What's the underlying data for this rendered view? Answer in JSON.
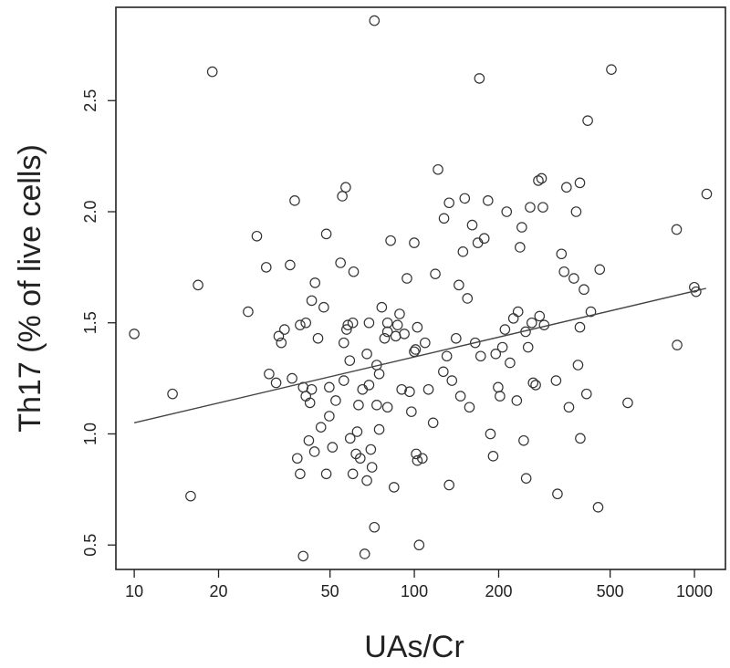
{
  "chart_data": {
    "type": "scatter",
    "title": "",
    "xlabel": "UAs/Cr",
    "ylabel": "Th17 (% of live cells)",
    "x_scale": "log",
    "xlim": [
      8.6,
      1290
    ],
    "ylim": [
      0.39,
      2.92
    ],
    "x_ticks": [
      10,
      20,
      50,
      100,
      200,
      500,
      1000
    ],
    "x_tick_labels": [
      "10",
      "20",
      "50",
      "100",
      "200",
      "500",
      "1000"
    ],
    "y_ticks": [
      0.5,
      1.0,
      1.5,
      2.0,
      2.5
    ],
    "y_tick_labels": [
      "0.5",
      "1.0",
      "1.5",
      "2.0",
      "2.5"
    ],
    "grid": false,
    "legend": "none",
    "marker": "open-circle",
    "colors": {
      "marker": "#333333",
      "line": "#444444",
      "frame": "#222222"
    },
    "trend_line": {
      "x": [
        10,
        1100
      ],
      "y": [
        1.05,
        1.655
      ]
    },
    "points": [
      [
        10,
        1.45
      ],
      [
        13.7,
        1.18
      ],
      [
        15.9,
        0.72
      ],
      [
        16.9,
        1.67
      ],
      [
        19,
        2.63
      ],
      [
        25.5,
        1.55
      ],
      [
        27.4,
        1.89
      ],
      [
        29.6,
        1.75
      ],
      [
        30.3,
        1.27
      ],
      [
        32.1,
        1.23
      ],
      [
        32.8,
        1.44
      ],
      [
        33.5,
        1.41
      ],
      [
        34.4,
        1.47
      ],
      [
        36,
        1.76
      ],
      [
        36.6,
        1.25
      ],
      [
        37.4,
        2.05
      ],
      [
        38.2,
        0.89
      ],
      [
        39.1,
        1.49
      ],
      [
        39.1,
        0.82
      ],
      [
        40.1,
        1.21
      ],
      [
        40.1,
        0.45
      ],
      [
        41,
        1.5
      ],
      [
        41,
        1.17
      ],
      [
        42,
        0.97
      ],
      [
        42.4,
        1.14
      ],
      [
        43,
        1.6
      ],
      [
        43,
        1.2
      ],
      [
        44,
        0.92
      ],
      [
        44.2,
        1.68
      ],
      [
        45.3,
        1.43
      ],
      [
        46.4,
        1.03
      ],
      [
        47.5,
        1.57
      ],
      [
        48.5,
        0.82
      ],
      [
        48.5,
        1.9
      ],
      [
        49.7,
        1.08
      ],
      [
        49.7,
        1.21
      ],
      [
        51,
        0.94
      ],
      [
        52.4,
        1.15
      ],
      [
        54.5,
        1.77
      ],
      [
        55.3,
        2.07
      ],
      [
        56,
        1.41
      ],
      [
        56,
        1.24
      ],
      [
        56.9,
        2.11
      ],
      [
        57.3,
        1.47
      ],
      [
        57.9,
        1.49
      ],
      [
        58.8,
        1.33
      ],
      [
        59,
        0.98
      ],
      [
        60.3,
        1.5
      ],
      [
        60.3,
        0.82
      ],
      [
        60.7,
        1.73
      ],
      [
        61.9,
        0.91
      ],
      [
        62.5,
        1.01
      ],
      [
        63.2,
        1.13
      ],
      [
        64.1,
        0.89
      ],
      [
        65.3,
        1.2
      ],
      [
        66.5,
        0.46
      ],
      [
        67.7,
        0.79
      ],
      [
        67.7,
        1.36
      ],
      [
        68.9,
        1.5
      ],
      [
        68.9,
        1.22
      ],
      [
        69.9,
        0.93
      ],
      [
        70.6,
        0.85
      ],
      [
        72,
        2.86
      ],
      [
        72,
        0.58
      ],
      [
        73.4,
        1.13
      ],
      [
        73.4,
        1.31
      ],
      [
        74.9,
        1.27
      ],
      [
        74.9,
        1.02
      ],
      [
        76.5,
        1.57
      ],
      [
        78.3,
        1.43
      ],
      [
        80.2,
        1.5
      ],
      [
        80.2,
        1.12
      ],
      [
        80.2,
        1.46
      ],
      [
        82.3,
        1.87
      ],
      [
        84.6,
        0.76
      ],
      [
        85.8,
        1.44
      ],
      [
        87.1,
        1.49
      ],
      [
        88.6,
        1.54
      ],
      [
        90.1,
        1.2
      ],
      [
        92.1,
        1.45
      ],
      [
        94.1,
        1.7
      ],
      [
        96.2,
        1.19
      ],
      [
        97.6,
        1.1
      ],
      [
        99.9,
        1.37
      ],
      [
        99.9,
        1.86
      ],
      [
        101,
        1.38
      ],
      [
        101.5,
        0.91
      ],
      [
        102.5,
        1.48
      ],
      [
        102.5,
        0.88
      ],
      [
        104,
        0.5
      ],
      [
        106.8,
        0.89
      ],
      [
        109.2,
        1.41
      ],
      [
        112.3,
        1.2
      ],
      [
        116.7,
        1.05
      ],
      [
        118.8,
        1.72
      ],
      [
        121.5,
        2.19
      ],
      [
        126.9,
        1.28
      ],
      [
        127.6,
        1.97
      ],
      [
        130.6,
        1.35
      ],
      [
        133.1,
        0.77
      ],
      [
        133.1,
        2.04
      ],
      [
        136.2,
        1.24
      ],
      [
        140.9,
        1.43
      ],
      [
        144.2,
        1.67
      ],
      [
        146.1,
        1.17
      ],
      [
        149.1,
        1.82
      ],
      [
        151.3,
        2.06
      ],
      [
        154.7,
        1.61
      ],
      [
        157.3,
        1.12
      ],
      [
        160.9,
        1.94
      ],
      [
        164.9,
        1.41
      ],
      [
        168.5,
        1.86
      ],
      [
        170.7,
        2.6
      ],
      [
        172.5,
        1.35
      ],
      [
        177.7,
        1.88
      ],
      [
        183.2,
        2.05
      ],
      [
        186.9,
        1
      ],
      [
        191.1,
        0.9
      ],
      [
        195.2,
        1.36
      ],
      [
        199.1,
        1.21
      ],
      [
        202.1,
        1.17
      ],
      [
        206.3,
        1.39
      ],
      [
        210.6,
        1.47
      ],
      [
        213.6,
        2
      ],
      [
        219.5,
        1.32
      ],
      [
        225.8,
        1.52
      ],
      [
        232.1,
        1.15
      ],
      [
        234.5,
        1.55
      ],
      [
        238.3,
        1.84
      ],
      [
        241.9,
        1.93
      ],
      [
        245.7,
        0.97
      ],
      [
        249.6,
        1.46
      ],
      [
        250.8,
        0.8
      ],
      [
        254.7,
        1.39
      ],
      [
        259,
        2.02
      ],
      [
        262.6,
        1.5
      ],
      [
        265.5,
        1.23
      ],
      [
        271.2,
        1.22
      ],
      [
        277.1,
        2.14
      ],
      [
        279.9,
        1.53
      ],
      [
        284.6,
        2.15
      ],
      [
        287.7,
        2.02
      ],
      [
        290.7,
        1.49
      ],
      [
        320.6,
        1.24
      ],
      [
        324.3,
        0.73
      ],
      [
        335.1,
        1.81
      ],
      [
        342.5,
        1.73
      ],
      [
        349.3,
        2.11
      ],
      [
        356.3,
        1.12
      ],
      [
        371,
        1.7
      ],
      [
        378.2,
        2
      ],
      [
        384,
        1.31
      ],
      [
        390,
        2.13
      ],
      [
        390,
        1.48
      ],
      [
        391.2,
        0.98
      ],
      [
        403.2,
        1.65
      ],
      [
        411.8,
        1.18
      ],
      [
        415.9,
        2.41
      ],
      [
        426.7,
        1.55
      ],
      [
        453,
        0.67
      ],
      [
        459,
        1.74
      ],
      [
        505,
        2.64
      ],
      [
        577.9,
        1.14
      ],
      [
        863.7,
        1.92
      ],
      [
        867.1,
        1.4
      ],
      [
        998.5,
        1.66
      ],
      [
        1013.5,
        1.64
      ],
      [
        1106.1,
        2.08
      ]
    ]
  }
}
